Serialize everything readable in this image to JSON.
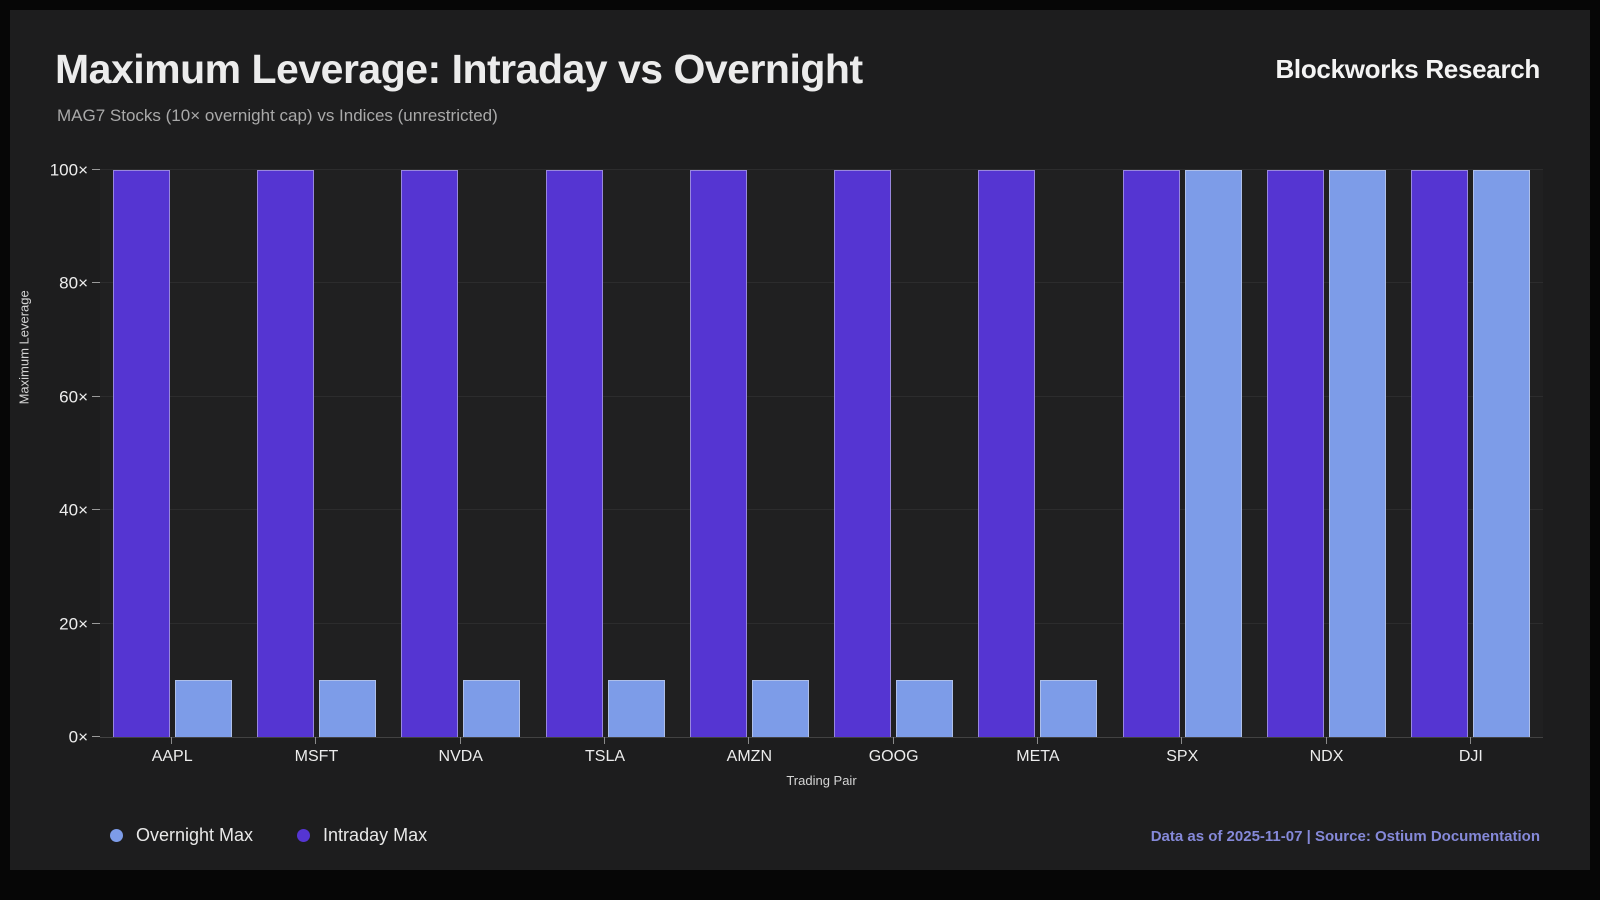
{
  "header": {
    "title": "Maximum Leverage: Intraday vs Overnight",
    "subtitle": "MAG7 Stocks (10× overnight cap) vs Indices (unrestricted)",
    "brand": "Blockworks Research"
  },
  "chart_data": {
    "type": "bar",
    "title": "Maximum Leverage: Intraday vs Overnight",
    "subtitle": "MAG7 Stocks (10× overnight cap) vs Indices (unrestricted)",
    "categories": [
      "AAPL",
      "MSFT",
      "NVDA",
      "TSLA",
      "AMZN",
      "GOOG",
      "META",
      "SPX",
      "NDX",
      "DJI"
    ],
    "series": [
      {
        "name": "Intraday Max",
        "color": "#5535d2",
        "values": [
          100,
          100,
          100,
          100,
          100,
          100,
          100,
          100,
          100,
          100
        ]
      },
      {
        "name": "Overnight Max",
        "color": "#7d9ce8",
        "values": [
          10,
          10,
          10,
          10,
          10,
          10,
          10,
          100,
          100,
          100
        ]
      }
    ],
    "bar_order": [
      "Intraday Max",
      "Overnight Max"
    ],
    "legend": [
      {
        "label": "Overnight Max",
        "color": "#7d9ce8"
      },
      {
        "label": "Intraday Max",
        "color": "#5535d2"
      }
    ],
    "legend_position": "bottom-left",
    "xlabel": "Trading Pair",
    "ylabel": "Maximum Leverage",
    "ylim": [
      0,
      100
    ],
    "yticks": [
      0,
      20,
      40,
      60,
      80,
      100
    ],
    "ytick_labels": [
      "0×",
      "20×",
      "40×",
      "60×",
      "80×",
      "100×"
    ],
    "grid": "horizontal"
  },
  "footer": {
    "text": "Data as of 2025-11-07 | Source: Ostium Documentation",
    "color": "#8589d9"
  },
  "theme": {
    "background": "#060606",
    "panel": "#1d1d1e",
    "text_primary": "#ececec",
    "text_muted": "#a9a9a9"
  }
}
